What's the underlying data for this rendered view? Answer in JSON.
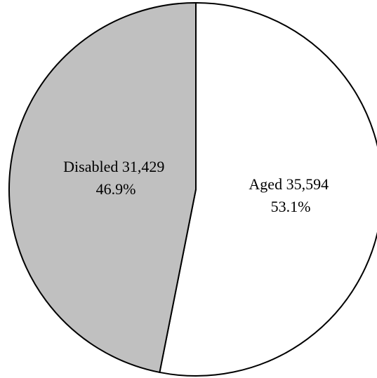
{
  "chart_data": {
    "type": "pie",
    "title": "",
    "start_angle_deg": 0,
    "direction": "clockwise",
    "slices": [
      {
        "category": "Aged",
        "value": 35594,
        "percent": 53.1,
        "label_line1": "Aged  35,594",
        "label_line2": "53.1%",
        "color": "#ffffff"
      },
      {
        "category": "Disabled",
        "value": 31429,
        "percent": 46.9,
        "label_line1": "Disabled 31,429",
        "label_line2": "46.9%",
        "color": "#c0c0c0"
      }
    ],
    "legend": "none"
  }
}
